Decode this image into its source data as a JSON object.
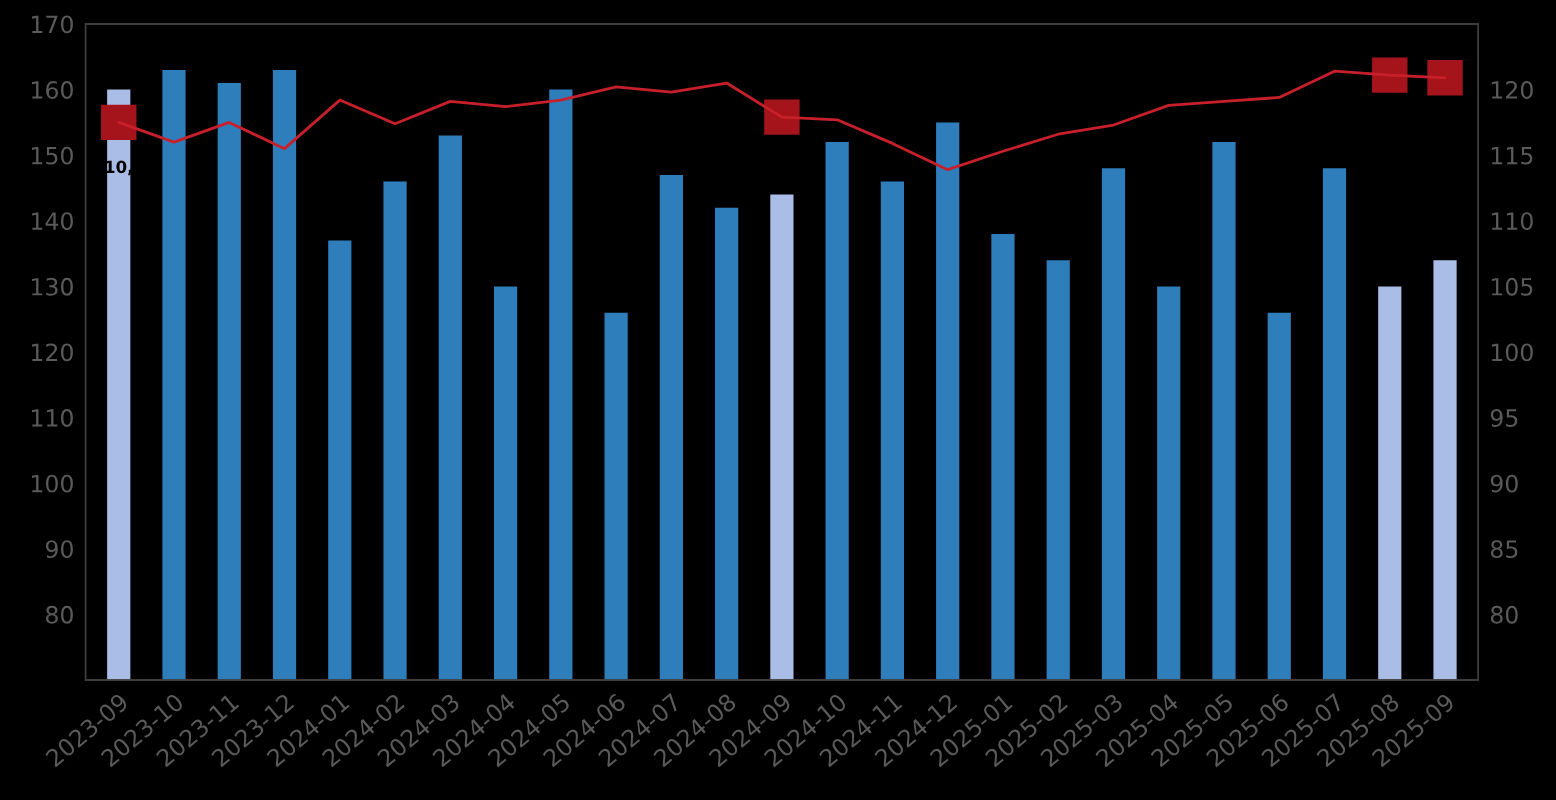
{
  "chart_data": {
    "type": "bar",
    "categories": [
      "2023-09",
      "2023-10",
      "2023-11",
      "2023-12",
      "2024-01",
      "2024-02",
      "2024-03",
      "2024-04",
      "2024-05",
      "2024-06",
      "2024-07",
      "2024-08",
      "2024-09",
      "2024-10",
      "2024-11",
      "2024-12",
      "2025-01",
      "2025-02",
      "2025-03",
      "2025-04",
      "2025-05",
      "2025-06",
      "2025-07",
      "2025-08",
      "2025-09"
    ],
    "series": [
      {
        "colors": [
          "#aabde6",
          "#2e7ebc",
          "#2e7ebc",
          "#2e7ebc",
          "#2e7ebc",
          "#2e7ebc",
          "#2e7ebc",
          "#2e7ebc",
          "#2e7ebc",
          "#2e7ebc",
          "#2e7ebc",
          "#2e7ebc",
          "#aabde6",
          "#2e7ebc",
          "#2e7ebc",
          "#2e7ebc",
          "#2e7ebc",
          "#2e7ebc",
          "#2e7ebc",
          "#2e7ebc",
          "#2e7ebc",
          "#2e7ebc",
          "#2e7ebc",
          "#aabde6",
          "#aabde6"
        ],
        "values": [
          160,
          163,
          161,
          163,
          137,
          146,
          153,
          130,
          160,
          126,
          147,
          142,
          144,
          152,
          146,
          155,
          138,
          134,
          148,
          130,
          152,
          126,
          148,
          130,
          134
        ]
      },
      {
        "type": "line",
        "axis": "y2",
        "color": "#c8202a",
        "values": [
          117.5,
          116.0,
          117.5,
          115.5,
          119.2,
          117.4,
          119.1,
          118.7,
          119.2,
          120.2,
          119.8,
          120.5,
          117.9,
          117.7,
          115.9,
          113.9,
          115.3,
          116.6,
          117.3,
          118.8,
          119.1,
          119.4,
          121.4,
          121.1,
          120.9
        ]
      },
      {
        "type": "scatter",
        "axis": "y2",
        "color": "#a5131b",
        "marker": "square",
        "values": [
          117.5,
          null,
          null,
          null,
          null,
          null,
          null,
          null,
          null,
          null,
          null,
          null,
          117.9,
          null,
          null,
          null,
          null,
          null,
          null,
          null,
          null,
          null,
          null,
          121.1,
          120.9
        ]
      }
    ],
    "ylim": [
      70,
      170
    ],
    "yticks": [
      80,
      90,
      100,
      110,
      120,
      130,
      140,
      150,
      160,
      170
    ],
    "y2lim": [
      75,
      125
    ],
    "y2ticks": [
      80,
      85,
      90,
      95,
      100,
      105,
      110,
      115,
      120
    ],
    "annotations": [
      "10,"
    ]
  }
}
